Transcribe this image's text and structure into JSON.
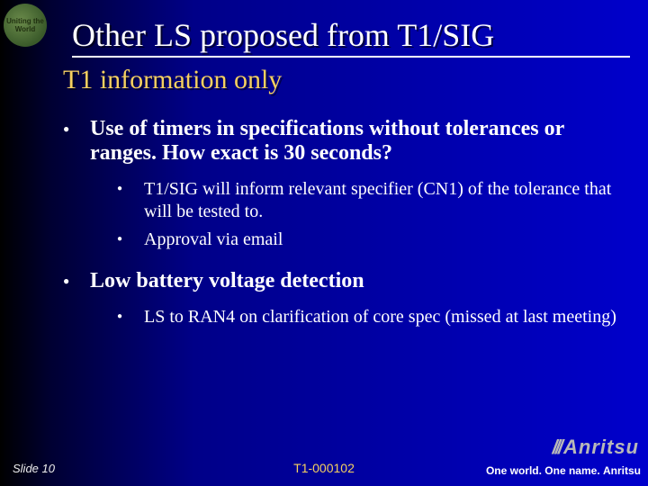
{
  "title": "Other LS proposed from T1/SIG",
  "subtitle": "T1 information only",
  "badge_text": "Uniting the World",
  "bullets": [
    {
      "text": "Use of timers in specifications without tolerances or ranges. How exact is 30 seconds?",
      "children": [
        "T1/SIG will inform relevant specifier (CN1) of the tolerance that will be tested to.",
        "Approval via email"
      ]
    },
    {
      "text": "Low battery voltage detection",
      "children": [
        "LS to RAN4 on clarification of core spec (missed at last meeting)"
      ]
    }
  ],
  "footer": {
    "slide": "Slide 10",
    "doc": "T1-000102",
    "brand_logo": "Anritsu",
    "tagline_a": "One world.",
    "tagline_b": "One name.",
    "tagline_brand": "Anritsu"
  },
  "colors": {
    "title_color": "#ffffff",
    "subtitle_color": "#f5d060",
    "doc_color": "#f5d060",
    "logo_gray": "#b8b8b8"
  }
}
